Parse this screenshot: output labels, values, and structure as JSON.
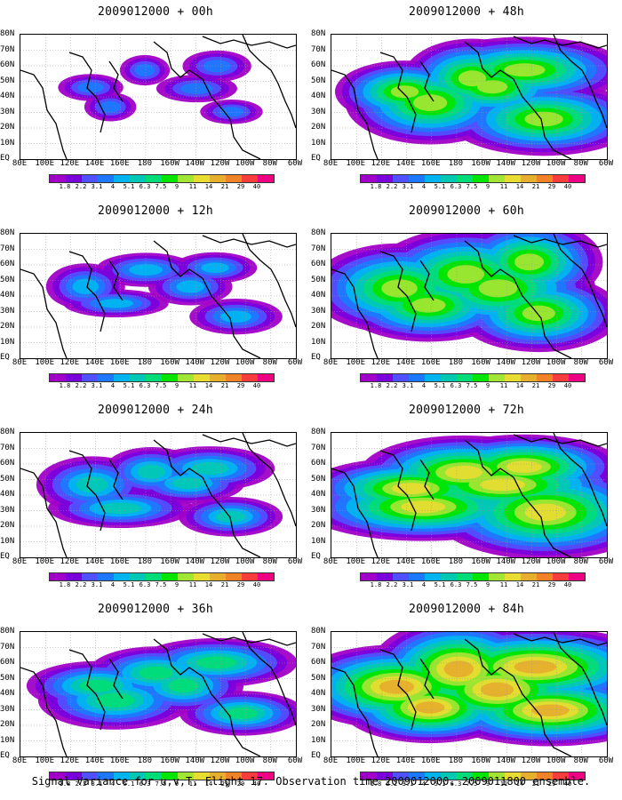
{
  "panels": [
    {
      "title": "2009012000 + 00h",
      "level": 0.05
    },
    {
      "title": "2009012000 + 48h",
      "level": 0.55
    },
    {
      "title": "2009012000 + 12h",
      "level": 0.15
    },
    {
      "title": "2009012000 + 60h",
      "level": 0.62
    },
    {
      "title": "2009012000 + 24h",
      "level": 0.3
    },
    {
      "title": "2009012000 + 72h",
      "level": 0.72
    },
    {
      "title": "2009012000 + 36h",
      "level": 0.42
    },
    {
      "title": "2009012000 + 84h",
      "level": 0.82
    }
  ],
  "lat_labels": [
    "80N",
    "70N",
    "60N",
    "50N",
    "40N",
    "30N",
    "20N",
    "10N",
    "EQ"
  ],
  "lon_labels": [
    "80E",
    "100E",
    "120E",
    "140E",
    "160E",
    "180",
    "160W",
    "140W",
    "120W",
    "100W",
    "80W",
    "60W"
  ],
  "colorbar": {
    "labels": [
      "1.8",
      "2.2",
      "3.1",
      "4",
      "5.1",
      "6.3",
      "7.5",
      "9",
      "11",
      "14",
      "21",
      "29",
      "40"
    ],
    "colors": [
      "#a000c8",
      "#7a00dc",
      "#5050ff",
      "#1e78ff",
      "#00b4f0",
      "#00c8b4",
      "#00dc78",
      "#00e600",
      "#a0e632",
      "#e6dc32",
      "#e6af2d",
      "#f08228",
      "#fa3c3c",
      "#f00082"
    ]
  },
  "footer": "Signal Variance for u,v,T. Flight 17. Observation time 2009012000. 2009011800 ensemble."
}
